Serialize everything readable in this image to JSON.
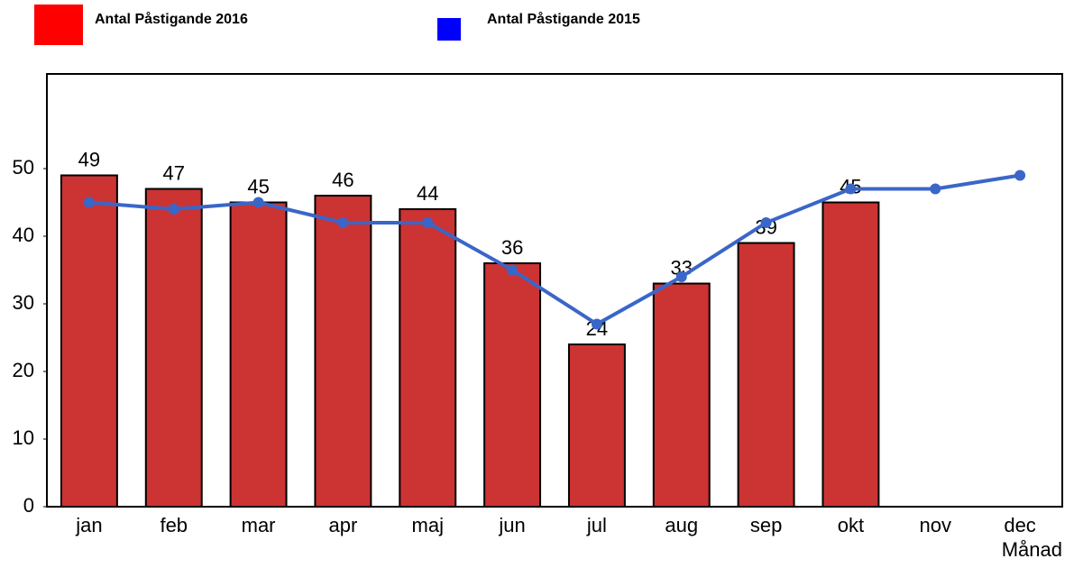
{
  "chart_data": {
    "type": "bar-line",
    "x_label": "Månad",
    "categories": [
      "jan",
      "feb",
      "mar",
      "apr",
      "maj",
      "jun",
      "jul",
      "aug",
      "sep",
      "okt",
      "nov",
      "dec"
    ],
    "series": [
      {
        "name": "Antal Påstigande 2016",
        "type": "bar",
        "color": "#cc3333",
        "legend_color": "#ff0000",
        "values": [
          49,
          47,
          45,
          46,
          44,
          36,
          24,
          33,
          39,
          45,
          null,
          null
        ]
      },
      {
        "name": "Antal Påstigande 2015",
        "type": "line",
        "color": "#3a66c8",
        "legend_color": "#0000ff",
        "values": [
          45,
          44,
          45,
          42,
          42,
          35,
          27,
          34,
          42,
          47,
          47,
          49
        ]
      }
    ],
    "ylim": [
      0,
      64
    ],
    "yticks": [
      0,
      10,
      20,
      30,
      40,
      50
    ],
    "grid": false
  }
}
